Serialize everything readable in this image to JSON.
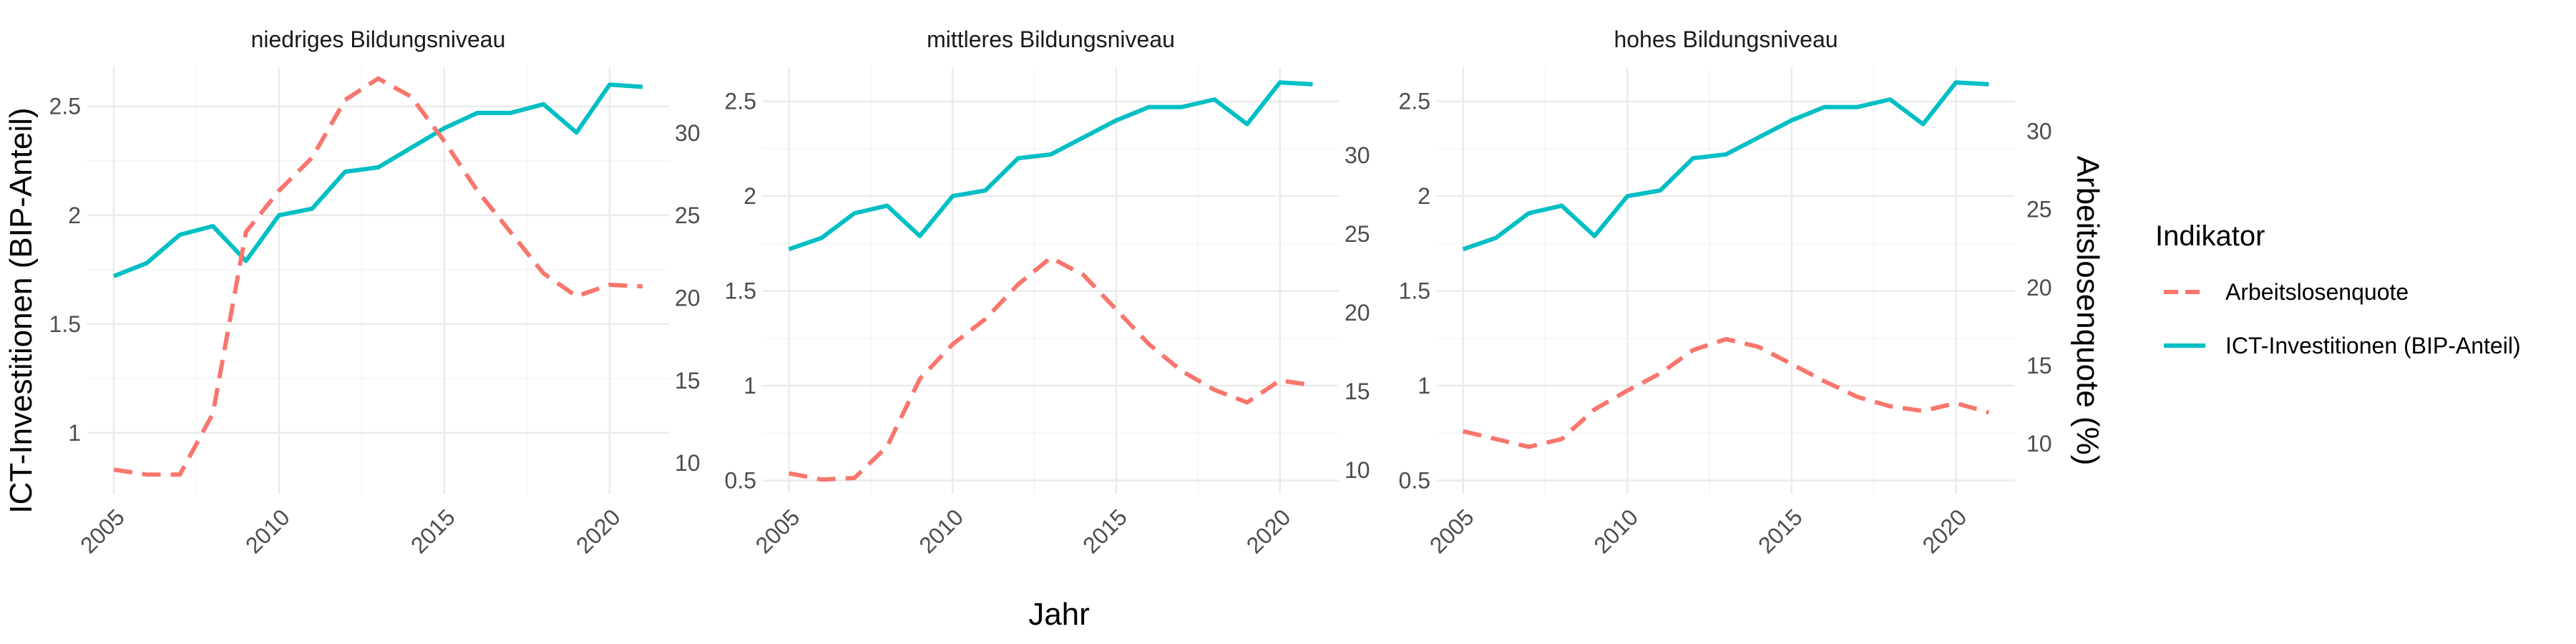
{
  "chart_data": {
    "type": "line",
    "x": [
      2005,
      2006,
      2007,
      2008,
      2009,
      2010,
      2011,
      2012,
      2013,
      2014,
      2015,
      2016,
      2017,
      2018,
      2019,
      2020,
      2021
    ],
    "xlabel": "Jahr",
    "ylabel_left": "ICT-Investitionen (BIP-Anteil)",
    "ylabel_right": "Arbeitslosenquote (%)",
    "x_ticks": [
      2005,
      2010,
      2015,
      2020
    ],
    "legend": {
      "title": "Indikator",
      "position": "right",
      "entries": [
        {
          "label": "Arbeitslosenquote",
          "color": "#F8766D",
          "dash": "dashed"
        },
        {
          "label": "ICT-Investitionen (BIP-Anteil)",
          "color": "#00BFC4",
          "dash": "solid"
        }
      ]
    },
    "grid": true,
    "panels": [
      {
        "title": "niedriges Bildungsniveau",
        "ylim_left": [
          0.72,
          2.68
        ],
        "ylim_right": [
          8.14,
          33.98
        ],
        "left_ticks": [
          1.0,
          1.5,
          2.0,
          2.5
        ],
        "right_ticks": [
          10,
          15,
          20,
          25,
          30
        ],
        "series": [
          {
            "name": "ICT-Investitionen (BIP-Anteil)",
            "axis": "left",
            "values": [
              1.72,
              1.78,
              1.91,
              1.95,
              1.79,
              2.0,
              2.03,
              2.2,
              2.22,
              2.31,
              2.4,
              2.47,
              2.47,
              2.51,
              2.38,
              2.6,
              2.59
            ]
          },
          {
            "name": "Arbeitslosenquote",
            "axis": "right",
            "values": [
              9.6,
              9.3,
              9.3,
              13.0,
              24.0,
              26.5,
              28.5,
              32.0,
              33.3,
              32.2,
              29.5,
              26.5,
              24.0,
              21.5,
              20.1,
              20.8,
              20.7
            ]
          }
        ]
      },
      {
        "title": "mittleres Bildungsniveau",
        "ylim_left": [
          0.43,
          2.68
        ],
        "ylim_right": [
          8.5,
          35.6
        ],
        "left_ticks": [
          0.5,
          1.0,
          1.5,
          2.0,
          2.5
        ],
        "right_ticks": [
          10,
          15,
          20,
          25,
          30
        ],
        "series": [
          {
            "name": "ICT-Investitionen (BIP-Anteil)",
            "axis": "left",
            "values": [
              1.72,
              1.78,
              1.91,
              1.95,
              1.79,
              2.0,
              2.03,
              2.2,
              2.22,
              2.31,
              2.4,
              2.47,
              2.47,
              2.51,
              2.38,
              2.6,
              2.59
            ]
          },
          {
            "name": "Arbeitslosenquote",
            "axis": "right",
            "values": [
              9.8,
              9.4,
              9.5,
              11.5,
              15.8,
              18.0,
              19.6,
              21.8,
              23.5,
              22.4,
              20.2,
              18.0,
              16.3,
              15.1,
              14.3,
              15.7,
              15.4
            ]
          }
        ]
      },
      {
        "title": "hohes Bildungsniveau",
        "ylim_left": [
          0.43,
          2.68
        ],
        "ylim_right": [
          6.8,
          34.1
        ],
        "left_ticks": [
          0.5,
          1.0,
          1.5,
          2.0,
          2.5
        ],
        "right_ticks": [
          10,
          15,
          20,
          25,
          30
        ],
        "series": [
          {
            "name": "ICT-Investitionen (BIP-Anteil)",
            "axis": "left",
            "values": [
              1.72,
              1.78,
              1.91,
              1.95,
              1.79,
              2.0,
              2.03,
              2.2,
              2.22,
              2.31,
              2.4,
              2.47,
              2.47,
              2.51,
              2.38,
              2.6,
              2.59
            ]
          },
          {
            "name": "Arbeitslosenquote",
            "axis": "right",
            "values": [
              10.8,
              10.3,
              9.8,
              10.3,
              12.2,
              13.4,
              14.5,
              16.0,
              16.7,
              16.2,
              15.1,
              14.0,
              13.0,
              12.4,
              12.1,
              12.6,
              12.0
            ]
          }
        ]
      }
    ]
  }
}
